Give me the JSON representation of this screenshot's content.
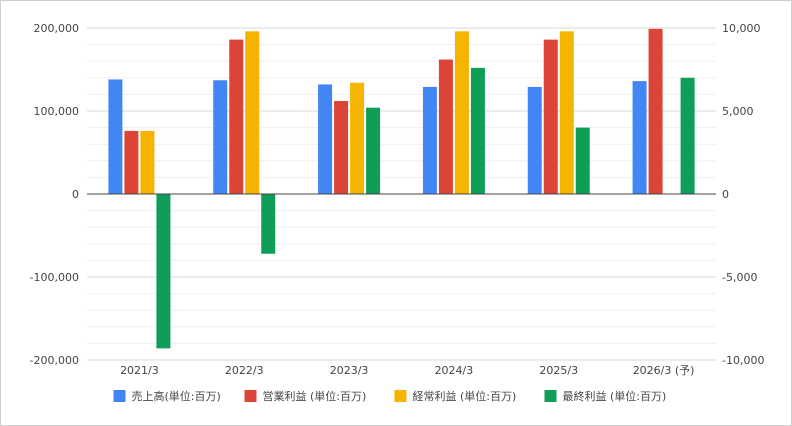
{
  "chart_data": {
    "type": "bar",
    "categories": [
      "2021/3",
      "2022/3",
      "2023/3",
      "2024/3",
      "2025/3",
      "2026/3 (予)"
    ],
    "series": [
      {
        "name": "売上高(単位:百万)",
        "axis": "left",
        "color": "#4285f4",
        "values": [
          138000,
          137000,
          132000,
          129000,
          129000,
          136000
        ]
      },
      {
        "name": "営業利益 (単位:百万)",
        "axis": "right",
        "color": "#db4437",
        "values": [
          3800,
          9300,
          5600,
          8100,
          9300,
          9950
        ]
      },
      {
        "name": "経常利益 (単位:百万)",
        "axis": "right",
        "color": "#f4b400",
        "values": [
          3800,
          9800,
          6700,
          9800,
          9800,
          null
        ]
      },
      {
        "name": "最終利益 (単位:百万)",
        "axis": "right",
        "color": "#0f9d58",
        "values": [
          -9300,
          -3600,
          5200,
          7600,
          4000,
          7000
        ]
      }
    ],
    "y_left": {
      "min": -200000,
      "max": 200000,
      "ticks": [
        "200,000",
        "100,000",
        "0",
        "-100,000",
        "-200,000"
      ]
    },
    "y_right": {
      "min": -10000,
      "max": 10000,
      "ticks": [
        "10,000",
        "5,000",
        "0",
        "-5,000",
        "-10,000"
      ]
    },
    "grid": true,
    "legend": "bottom"
  }
}
